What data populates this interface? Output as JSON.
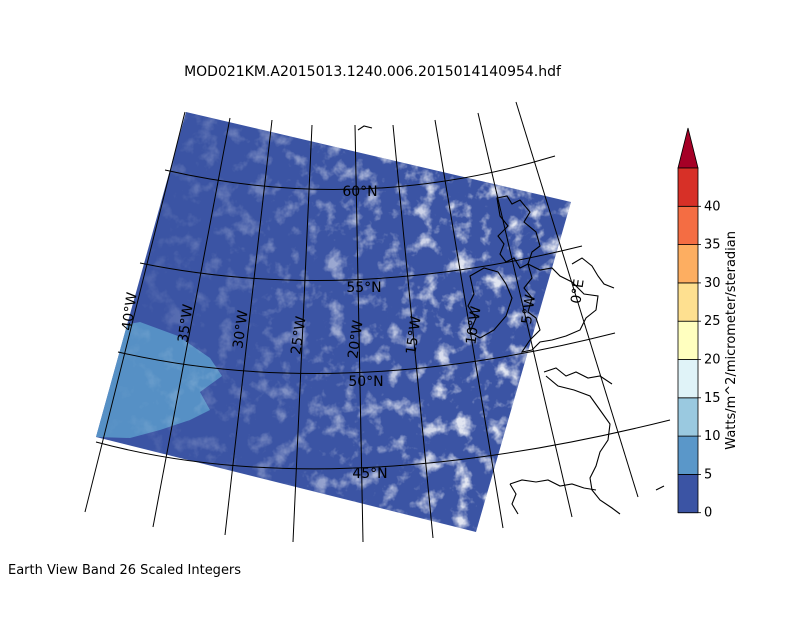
{
  "title": "MOD021KM.A2015013.1240.006.2015014140954.hdf",
  "caption": "Earth View Band 26 Scaled Integers",
  "colorbar": {
    "label": "Watts/m^2/micrometer/steradian",
    "ticks": [
      "0",
      "5",
      "10",
      "15",
      "20",
      "25",
      "30",
      "35",
      "40"
    ],
    "colors": [
      "#3b54a4",
      "#5a97c9",
      "#9ac9e0",
      "#e0f3f8",
      "#ffffbf",
      "#fee090",
      "#fdae61",
      "#f46d43",
      "#d73027"
    ],
    "under_color": "#313695",
    "over_color": "#a50026"
  },
  "map": {
    "parallels": [
      "45°N",
      "50°N",
      "55°N",
      "60°N"
    ],
    "meridians": [
      "40°W",
      "35°W",
      "30°W",
      "25°W",
      "20°W",
      "15°W",
      "10°W",
      "5°W",
      "0°E"
    ],
    "swath_color": "#3b54a4",
    "cloud_color": "#ffffff",
    "coastline_color": "#000000"
  }
}
